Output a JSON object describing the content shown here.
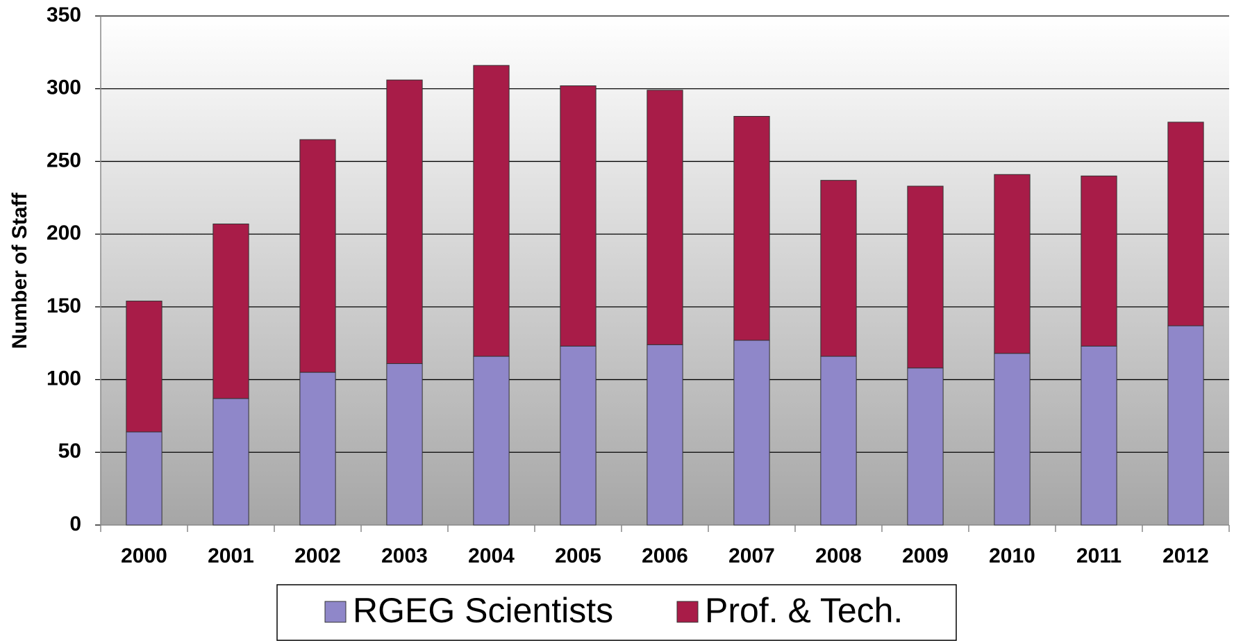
{
  "chart_data": {
    "type": "stacked_bar",
    "y_label": "Number of Staff",
    "categories": [
      "2000",
      "2001",
      "2002",
      "2003",
      "2004",
      "2005",
      "2006",
      "2007",
      "2008",
      "2009",
      "2010",
      "2011",
      "2012"
    ],
    "series": [
      {
        "name": "RGEG Scientists",
        "color": "#8f87c9",
        "values": [
          64,
          87,
          105,
          111,
          116,
          123,
          124,
          127,
          116,
          108,
          118,
          123,
          137
        ]
      },
      {
        "name": "Prof. & Tech.",
        "color": "#a81c48",
        "values": [
          90,
          120,
          160,
          195,
          200,
          179,
          175,
          154,
          121,
          125,
          123,
          117,
          140
        ]
      }
    ],
    "ylim": [
      0,
      350
    ],
    "yticks": [
      0,
      50,
      100,
      150,
      200,
      250,
      300,
      350
    ],
    "grid": true
  }
}
